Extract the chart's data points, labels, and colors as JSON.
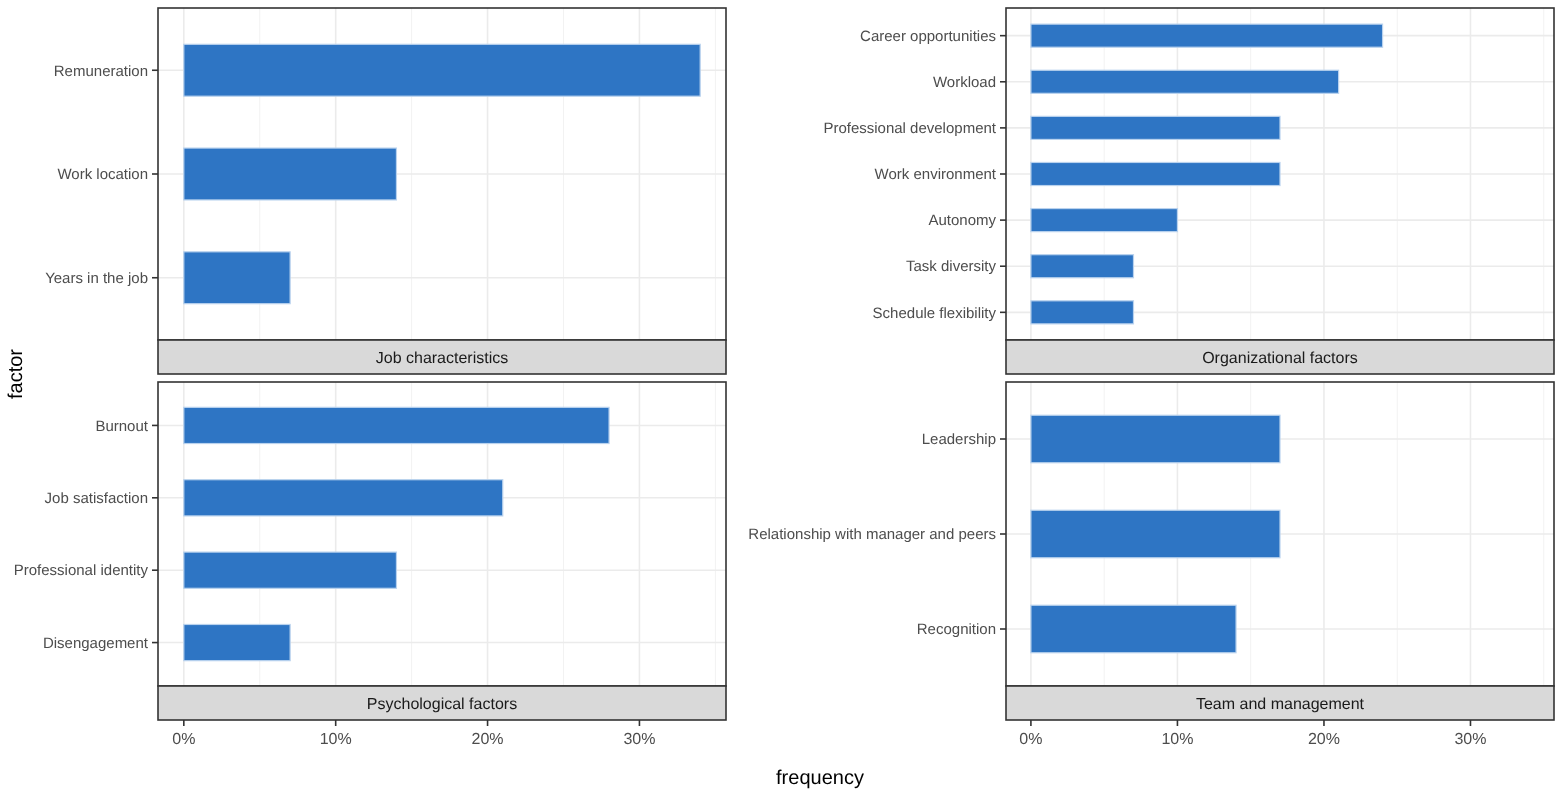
{
  "chart_data": [
    {
      "type": "bar",
      "orientation": "horizontal",
      "title": "Job characteristics",
      "ylabel": "factor",
      "categories": [
        "Remuneration",
        "Work location",
        "Years in the job"
      ],
      "values": [
        34,
        14,
        7
      ],
      "color": "#2e75c4",
      "xlim": [
        -1.7,
        35.7
      ],
      "xticks": [
        0,
        10,
        20,
        30
      ],
      "tick_labels": "y",
      "grid": true
    },
    {
      "type": "bar",
      "orientation": "horizontal",
      "title": "Organizational factors",
      "categories": [
        "Career opportunities",
        "Workload",
        "Professional development",
        "Work environment",
        "Autonomy",
        "Task diversity",
        "Schedule flexibility"
      ],
      "values": [
        24,
        21,
        17,
        17,
        10,
        7,
        7
      ],
      "color": "#2e75c4",
      "xlim": [
        -1.7,
        35.7
      ],
      "xticks": [
        0,
        10,
        20,
        30
      ],
      "tick_labels": "y",
      "grid": true
    },
    {
      "type": "bar",
      "orientation": "horizontal",
      "title": "Psychological factors",
      "xlabel": "frequency",
      "categories": [
        "Burnout",
        "Job satisfaction",
        "Professional identity",
        "Disengagement"
      ],
      "values": [
        28,
        21,
        14,
        7
      ],
      "color": "#2e75c4",
      "xlim": [
        -1.7,
        35.7
      ],
      "xticks": [
        {
          "value": 0,
          "label": "0%"
        },
        {
          "value": 10,
          "label": "10%"
        },
        {
          "value": 20,
          "label": "20%"
        },
        {
          "value": 30,
          "label": "30%"
        }
      ],
      "grid": true
    },
    {
      "type": "bar",
      "orientation": "horizontal",
      "title": "Team and management",
      "categories": [
        "Leadership",
        "Relationship with manager and peers",
        "Recognition"
      ],
      "values": [
        17,
        17,
        14
      ],
      "color": "#2e75c4",
      "xlim": [
        -1.7,
        35.7
      ],
      "xticks": [
        {
          "value": 0,
          "label": "0%"
        },
        {
          "value": 10,
          "label": "10%"
        },
        {
          "value": 20,
          "label": "20%"
        },
        {
          "value": 30,
          "label": "30%"
        }
      ],
      "grid": true
    }
  ]
}
